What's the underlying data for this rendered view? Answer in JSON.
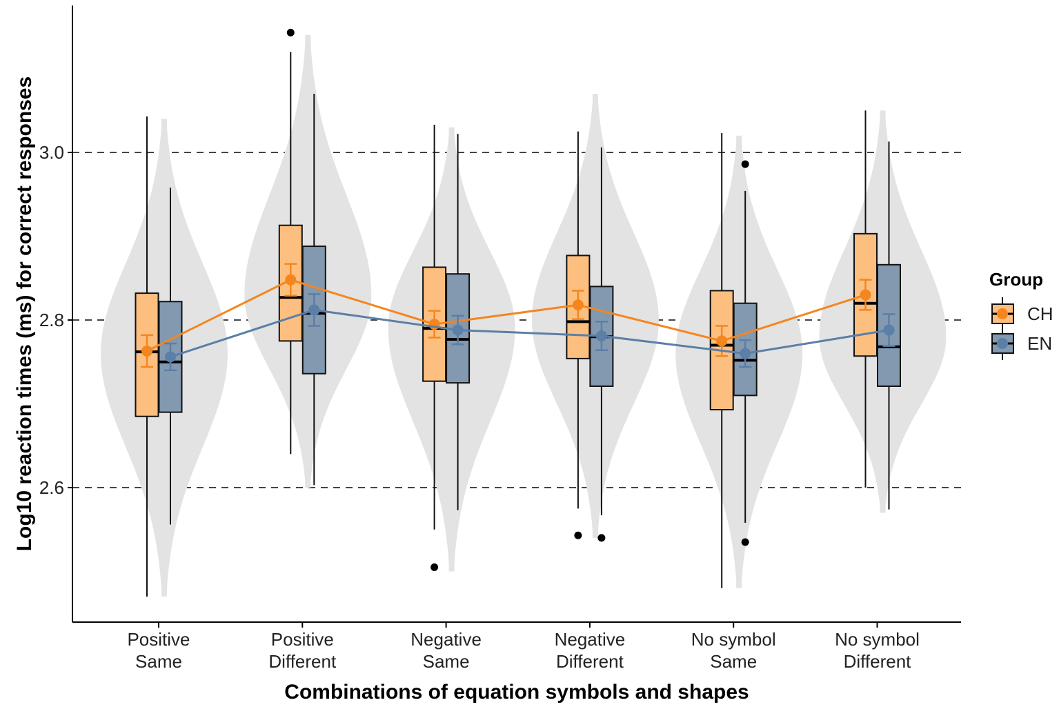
{
  "chart_data": {
    "type": "box-violin",
    "xlabel": "Combinations of equation symbols and shapes",
    "ylabel": "Log10 reaction times (ms) for correct responses",
    "ylim": [
      2.46,
      3.18
    ],
    "yticks": [
      "2.6",
      "2.8",
      "3.0"
    ],
    "ytick_values": [
      2.6,
      2.8,
      3.0
    ],
    "grid": "horizontal dashed at 2.6, 2.8, 3.0",
    "legend": {
      "title": "Group",
      "position": "right",
      "entries": [
        {
          "name": "CH",
          "color": "#f4861f",
          "fill": "#fdbf7f"
        },
        {
          "name": "EN",
          "color": "#5b7fa6",
          "fill": "#8299b0"
        }
      ]
    },
    "categories": [
      {
        "line1": "Positive",
        "line2": "Same"
      },
      {
        "line1": "Positive",
        "line2": "Different"
      },
      {
        "line1": "Negative",
        "line2": "Same"
      },
      {
        "line1": "Negative",
        "line2": "Different"
      },
      {
        "line1": "No symbol",
        "line2": "Same"
      },
      {
        "line1": "No symbol",
        "line2": "Different"
      }
    ],
    "violins": [
      {
        "min": 2.47,
        "max": 3.04,
        "mode": 2.76
      },
      {
        "min": 2.6,
        "max": 3.14,
        "mode": 2.83
      },
      {
        "min": 2.5,
        "max": 3.03,
        "mode": 2.79
      },
      {
        "min": 2.54,
        "max": 3.07,
        "mode": 2.8
      },
      {
        "min": 2.48,
        "max": 3.02,
        "mode": 2.76
      },
      {
        "min": 2.57,
        "max": 3.05,
        "mode": 2.78
      }
    ],
    "series": [
      {
        "name": "CH",
        "boxes": [
          {
            "wmin": 2.47,
            "q1": 2.685,
            "median": 2.762,
            "q3": 2.832,
            "wmax": 3.043
          },
          {
            "wmin": 2.64,
            "q1": 2.775,
            "median": 2.827,
            "q3": 2.913,
            "wmax": 3.12
          },
          {
            "wmin": 2.55,
            "q1": 2.727,
            "median": 2.79,
            "q3": 2.863,
            "wmax": 3.033
          },
          {
            "wmin": 2.575,
            "q1": 2.754,
            "median": 2.798,
            "q3": 2.877,
            "wmax": 3.025
          },
          {
            "wmin": 2.48,
            "q1": 2.693,
            "median": 2.77,
            "q3": 2.835,
            "wmax": 3.023
          },
          {
            "wmin": 2.6,
            "q1": 2.757,
            "median": 2.82,
            "q3": 2.903,
            "wmax": 3.05
          }
        ],
        "outliers": [
          [],
          [
            3.143
          ],
          [
            2.505
          ],
          [
            2.543
          ],
          [],
          []
        ],
        "means": [
          2.763,
          2.848,
          2.795,
          2.818,
          2.775,
          2.83
        ],
        "errors": [
          0.019,
          0.019,
          0.016,
          0.017,
          0.018,
          0.018
        ]
      },
      {
        "name": "EN",
        "boxes": [
          {
            "wmin": 2.556,
            "q1": 2.69,
            "median": 2.75,
            "q3": 2.822,
            "wmax": 2.958
          },
          {
            "wmin": 2.603,
            "q1": 2.736,
            "median": 2.808,
            "q3": 2.888,
            "wmax": 3.07
          },
          {
            "wmin": 2.573,
            "q1": 2.725,
            "median": 2.777,
            "q3": 2.855,
            "wmax": 3.022
          },
          {
            "wmin": 2.567,
            "q1": 2.721,
            "median": 2.78,
            "q3": 2.84,
            "wmax": 3.006
          },
          {
            "wmin": 2.558,
            "q1": 2.71,
            "median": 2.752,
            "q3": 2.82,
            "wmax": 2.954
          },
          {
            "wmin": 2.574,
            "q1": 2.721,
            "median": 2.768,
            "q3": 2.866,
            "wmax": 3.013
          }
        ],
        "outliers": [
          [],
          [],
          [],
          [
            2.54
          ],
          [
            2.986,
            2.535
          ],
          []
        ],
        "means": [
          2.756,
          2.812,
          2.788,
          2.781,
          2.76,
          2.788
        ],
        "errors": [
          0.016,
          0.019,
          0.017,
          0.017,
          0.016,
          0.019
        ]
      }
    ]
  }
}
